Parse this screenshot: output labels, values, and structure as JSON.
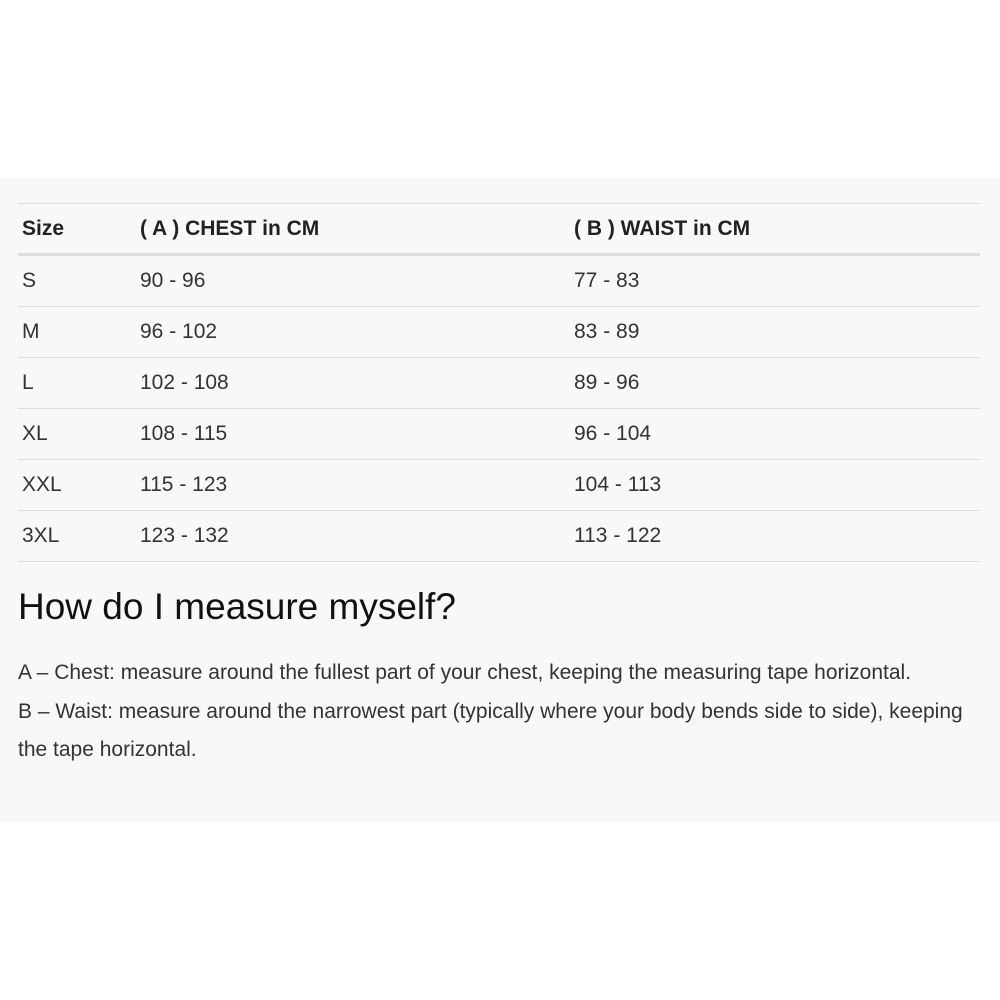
{
  "table": {
    "headers": [
      "Size",
      "( A ) CHEST in CM",
      "( B ) WAIST in CM"
    ],
    "rows": [
      [
        "S",
        "90 - 96",
        "77 - 83"
      ],
      [
        "M",
        "96 - 102",
        "83 - 89"
      ],
      [
        "L",
        "102 - 108",
        "89 - 96"
      ],
      [
        "XL",
        "108 - 115",
        "96 - 104"
      ],
      [
        "XXL",
        "115 - 123",
        "104 - 113"
      ],
      [
        "3XL",
        "123 - 132",
        "113 - 122"
      ]
    ]
  },
  "guide": {
    "title": "How do I measure myself?",
    "items": [
      "A – Chest: measure around the fullest part of your chest, keeping the measuring tape horizontal.",
      "B – Waist: measure around the narrowest part (typically where your body bends side to side), keeping the tape horizontal."
    ]
  }
}
